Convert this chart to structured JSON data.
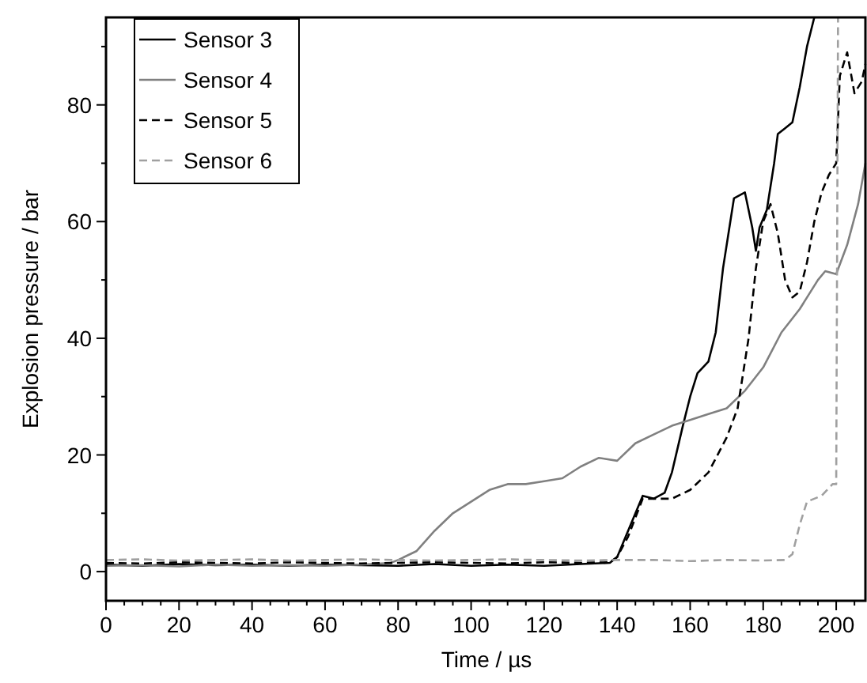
{
  "chart_data": {
    "type": "line",
    "xlabel": "Time  /  µs",
    "ylabel": "Explosion pressure  /  bar",
    "xlim": [
      0,
      208
    ],
    "ylim": [
      -5,
      95
    ],
    "xticks": [
      0,
      {
        "value": 5,
        "label": null
      },
      {
        "value": 10,
        "label": null
      },
      {
        "value": 15,
        "label": null
      },
      20,
      {
        "value": 25,
        "label": null
      },
      {
        "value": 30,
        "label": null
      },
      {
        "value": 35,
        "label": null
      },
      40,
      {
        "value": 45,
        "label": null
      },
      {
        "value": 50,
        "label": null
      },
      {
        "value": 55,
        "label": null
      },
      60,
      {
        "value": 65,
        "label": null
      },
      {
        "value": 70,
        "label": null
      },
      {
        "value": 75,
        "label": null
      },
      80,
      {
        "value": 85,
        "label": null
      },
      {
        "value": 90,
        "label": null
      },
      {
        "value": 95,
        "label": null
      },
      100,
      {
        "value": 105,
        "label": null
      },
      {
        "value": 110,
        "label": null
      },
      {
        "value": 115,
        "label": null
      },
      120,
      {
        "value": 125,
        "label": null
      },
      {
        "value": 130,
        "label": null
      },
      {
        "value": 135,
        "label": null
      },
      140,
      {
        "value": 145,
        "label": null
      },
      {
        "value": 150,
        "label": null
      },
      {
        "value": 155,
        "label": null
      },
      160,
      {
        "value": 165,
        "label": null
      },
      {
        "value": 170,
        "label": null
      },
      {
        "value": 175,
        "label": null
      },
      180,
      {
        "value": 185,
        "label": null
      },
      {
        "value": 190,
        "label": null
      },
      {
        "value": 195,
        "label": null
      },
      200,
      {
        "value": 205,
        "label": null
      }
    ],
    "yticks": [
      0,
      {
        "value": 10,
        "label": null
      },
      20,
      {
        "value": 30,
        "label": null
      },
      40,
      {
        "value": 50,
        "label": null
      },
      60,
      {
        "value": 70,
        "label": null
      },
      80,
      {
        "value": 90,
        "label": null
      }
    ],
    "grid": false,
    "legend": "top left",
    "marker": "none",
    "series": [
      {
        "name": "Sensor 3",
        "color": "#000000",
        "line_style": "solid",
        "x": [
          0,
          10,
          20,
          30,
          40,
          50,
          60,
          70,
          80,
          90,
          100,
          110,
          120,
          130,
          138,
          140,
          143,
          147,
          150,
          153,
          155,
          158,
          160,
          162,
          165,
          167,
          169,
          171,
          172,
          175,
          177,
          178,
          179,
          181,
          183,
          184,
          186,
          188,
          190,
          192,
          194
        ],
        "values": [
          1.2,
          1.0,
          1.3,
          1.1,
          1.2,
          1.0,
          1.2,
          1.1,
          1.0,
          1.3,
          1.0,
          1.2,
          1.0,
          1.3,
          1.5,
          2.5,
          7,
          13,
          12.5,
          13.5,
          17,
          25,
          30,
          34,
          36,
          41,
          52,
          60,
          64,
          65,
          59,
          55,
          59,
          62,
          70,
          75,
          76,
          77,
          83,
          90,
          95
        ]
      },
      {
        "name": "Sensor 4",
        "color": "#808080",
        "line_style": "solid",
        "x": [
          0,
          10,
          20,
          30,
          40,
          50,
          60,
          70,
          78,
          80,
          85,
          90,
          95,
          100,
          105,
          110,
          115,
          120,
          125,
          130,
          135,
          140,
          145,
          150,
          155,
          160,
          165,
          170,
          175,
          180,
          185,
          190,
          195,
          197,
          200,
          203,
          206,
          208
        ],
        "values": [
          1.0,
          1.1,
          0.9,
          1.2,
          1.0,
          1.1,
          1.0,
          1.2,
          1.5,
          2,
          3.5,
          7,
          10,
          12,
          14,
          15,
          15,
          15.5,
          16,
          18,
          19.5,
          19,
          22,
          23.5,
          25,
          26,
          27,
          28,
          31,
          35,
          41,
          45,
          50,
          51.5,
          51,
          56,
          63,
          70
        ]
      },
      {
        "name": "Sensor 5",
        "color": "#000000",
        "line_style": "dashed",
        "x": [
          0,
          10,
          20,
          30,
          40,
          50,
          60,
          70,
          80,
          90,
          100,
          110,
          120,
          130,
          138,
          140,
          143,
          147,
          150,
          155,
          160,
          165,
          170,
          173,
          176,
          178,
          180,
          182,
          184,
          186,
          188,
          190,
          192,
          194,
          196,
          198,
          200,
          201,
          203,
          205,
          207,
          208
        ],
        "values": [
          1.5,
          1.4,
          1.6,
          1.5,
          1.4,
          1.6,
          1.5,
          1.4,
          1.5,
          1.6,
          1.5,
          1.4,
          1.6,
          1.5,
          1.6,
          2.5,
          6,
          12.5,
          12.5,
          12.5,
          14,
          17,
          23,
          28,
          40,
          52,
          60,
          63,
          58,
          50,
          47,
          48,
          53,
          60,
          65,
          68,
          70,
          85,
          89,
          82,
          84,
          87
        ]
      },
      {
        "name": "Sensor 6",
        "color": "#a0a0a0",
        "line_style": "dashed",
        "x": [
          0,
          10,
          20,
          30,
          40,
          50,
          60,
          70,
          80,
          90,
          100,
          110,
          120,
          130,
          140,
          150,
          160,
          170,
          180,
          186,
          188,
          190,
          192,
          196,
          199,
          200,
          200.5
        ],
        "values": [
          2,
          2.1,
          1.9,
          2,
          2.1,
          1.9,
          2,
          2.1,
          2,
          1.9,
          2,
          2.1,
          2,
          1.9,
          2,
          2,
          1.8,
          2,
          1.9,
          2,
          3,
          8,
          12,
          13,
          15,
          15,
          95
        ]
      }
    ]
  }
}
